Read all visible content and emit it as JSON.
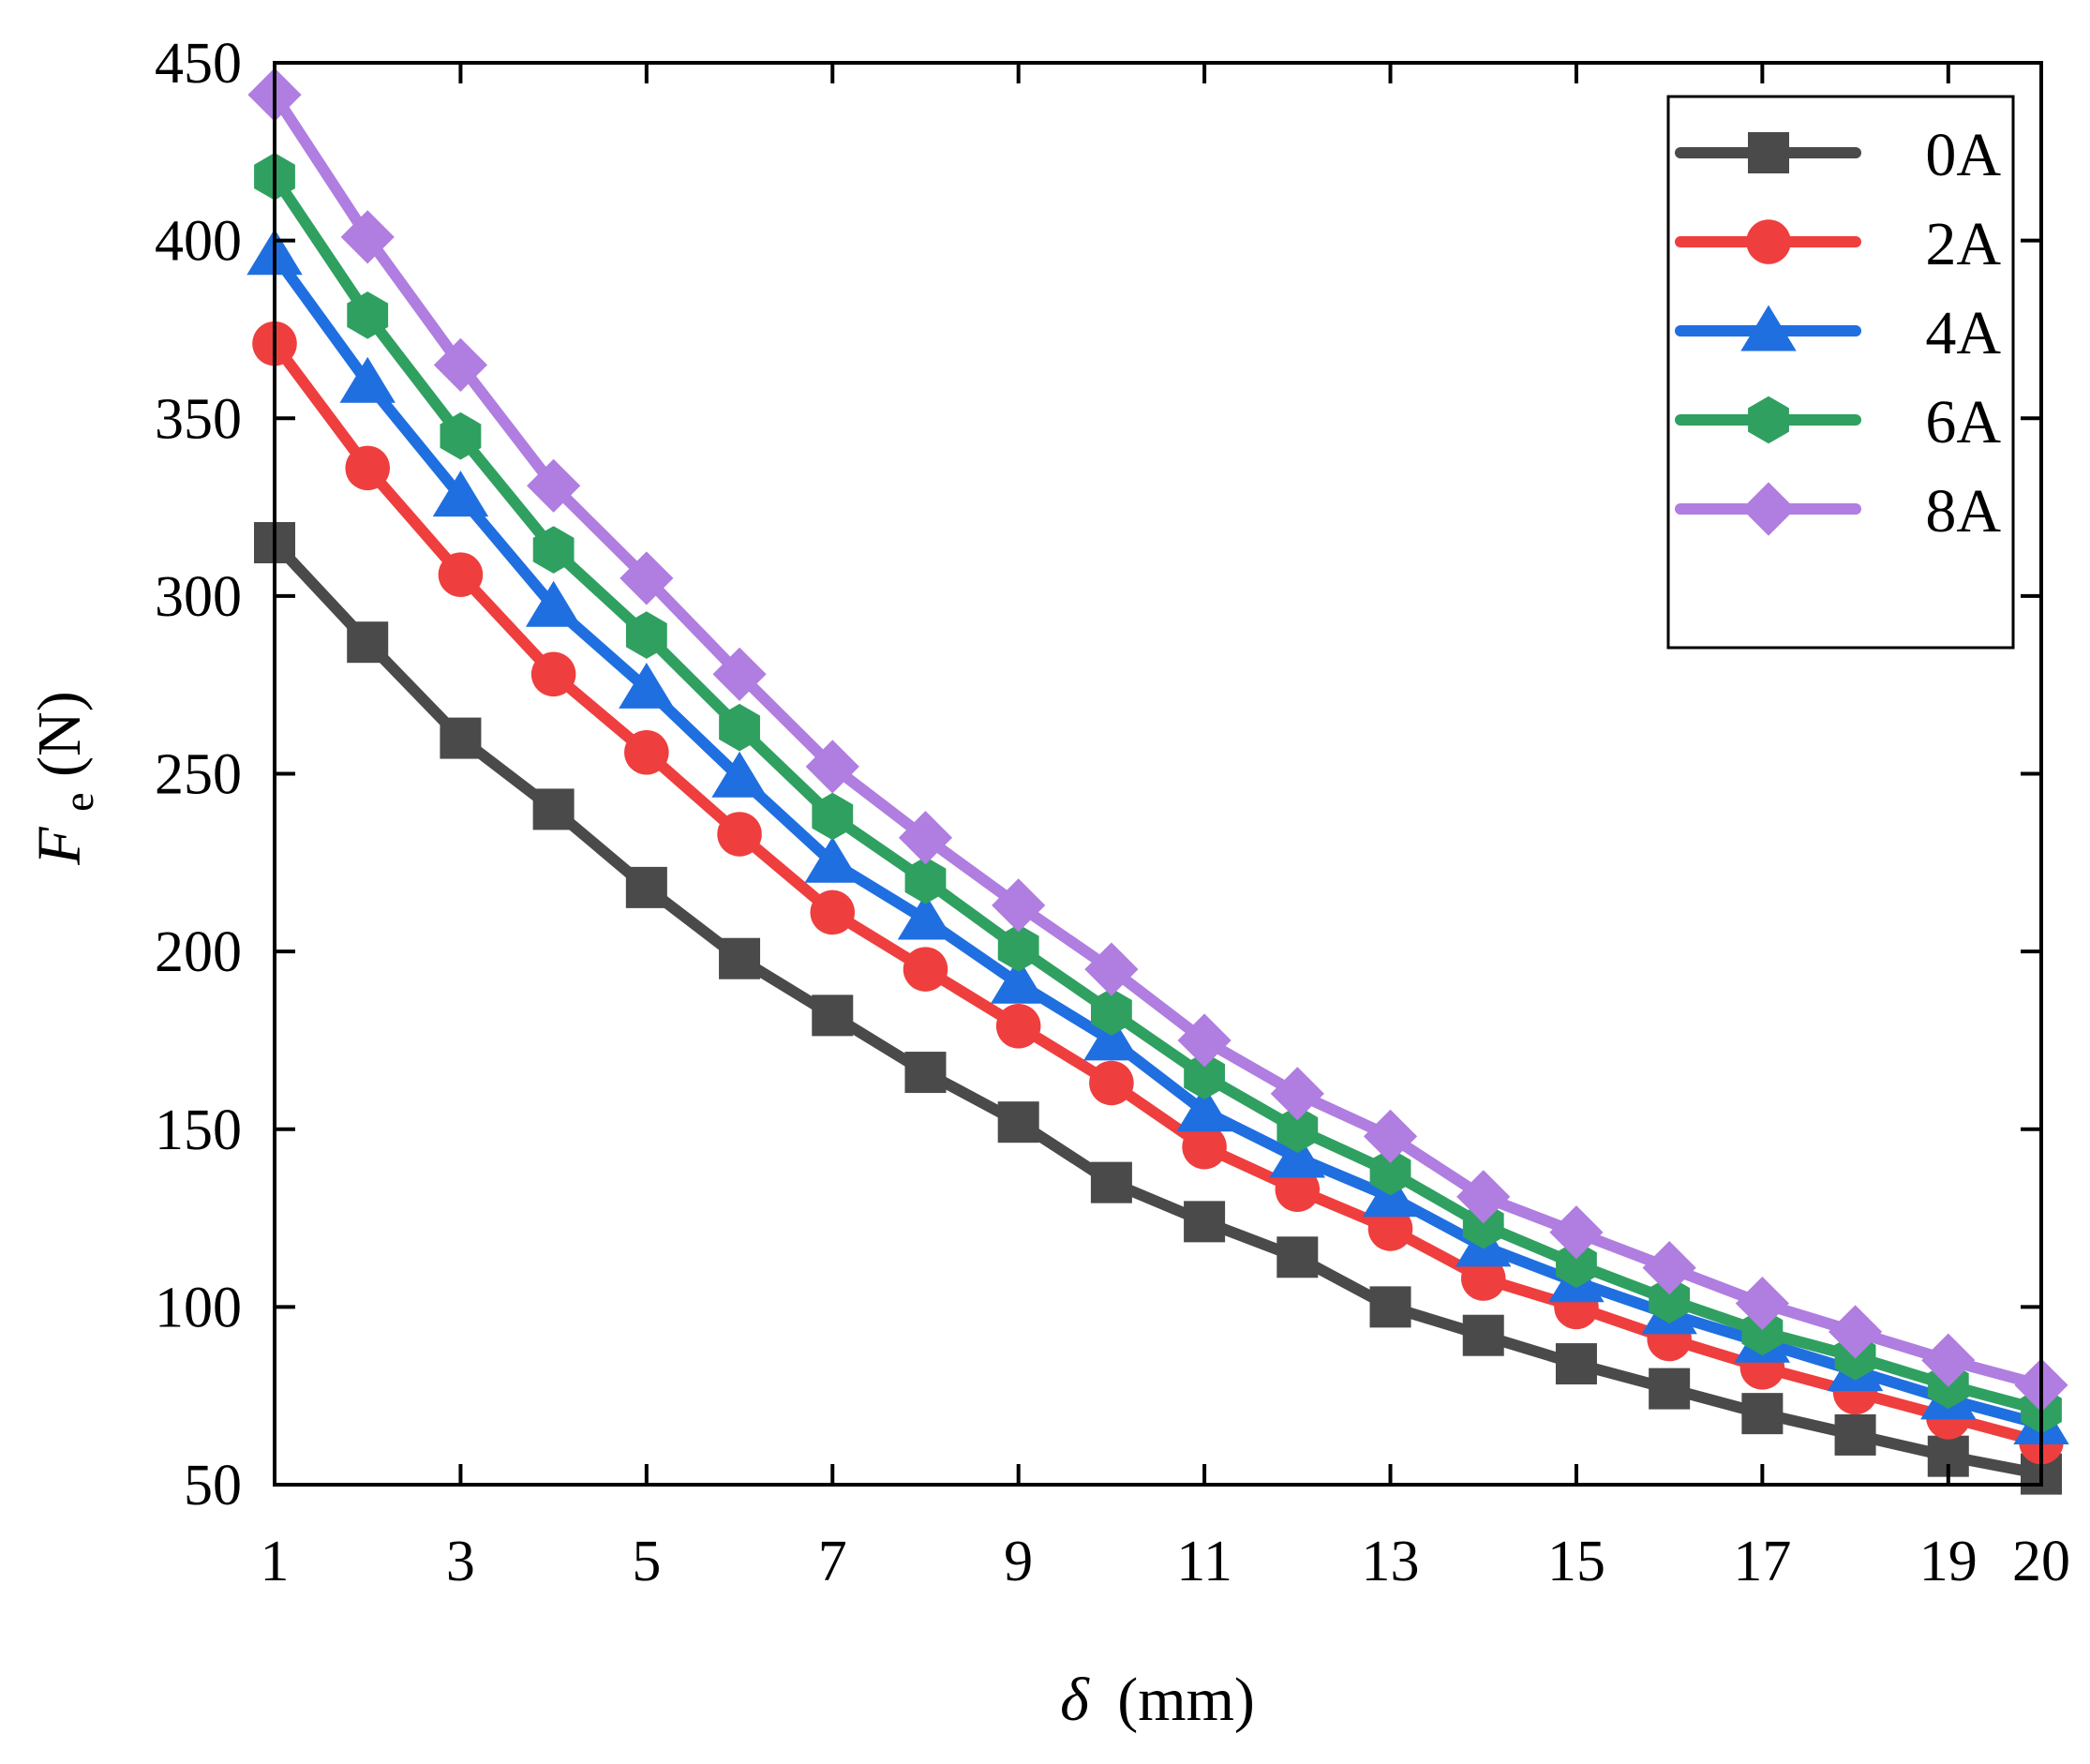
{
  "chart_data": {
    "type": "line",
    "xlabel_symbol": "δ",
    "xlabel_unit": "(mm)",
    "ylabel_symbol": "F",
    "ylabel_subscript": "e",
    "ylabel_unit": "(N)",
    "xlim": [
      1,
      20
    ],
    "ylim": [
      50,
      450
    ],
    "xticks": [
      1,
      3,
      5,
      7,
      9,
      11,
      13,
      15,
      17,
      19,
      20
    ],
    "yticks": [
      50,
      100,
      150,
      200,
      250,
      300,
      350,
      400,
      450
    ],
    "grid": false,
    "legend_position": "top-right",
    "x": [
      1,
      2,
      3,
      4,
      5,
      6,
      7,
      8,
      9,
      10,
      11,
      12,
      13,
      14,
      15,
      16,
      17,
      18,
      19,
      20
    ],
    "series": [
      {
        "name": "0A",
        "color": "#4a4a4a",
        "marker": "square",
        "values": [
          315,
          287,
          260,
          240,
          218,
          198,
          182,
          166,
          152,
          135,
          124,
          114,
          100,
          92,
          84,
          77,
          70,
          64,
          58,
          53
        ]
      },
      {
        "name": "2A",
        "color": "#ef3e3e",
        "marker": "circle",
        "values": [
          371,
          336,
          306,
          278,
          256,
          233,
          211,
          195,
          179,
          163,
          145,
          133,
          122,
          108,
          100,
          91,
          83,
          76,
          69,
          62
        ]
      },
      {
        "name": "4A",
        "color": "#1f6fe0",
        "marker": "triangle",
        "values": [
          396,
          360,
          328,
          297,
          274,
          249,
          225,
          209,
          191,
          175,
          155,
          142,
          131,
          117,
          107,
          98,
          90,
          82,
          74,
          67
        ]
      },
      {
        "name": "6A",
        "color": "#2fa060",
        "marker": "hexagon",
        "values": [
          418,
          379,
          345,
          313,
          289,
          263,
          238,
          220,
          201,
          183,
          165,
          150,
          138,
          123,
          112,
          102,
          93,
          86,
          78,
          71
        ]
      },
      {
        "name": "8A",
        "color": "#b07de0",
        "marker": "diamond",
        "values": [
          441,
          401,
          365,
          331,
          305,
          278,
          252,
          232,
          213,
          195,
          175,
          160,
          148,
          131,
          121,
          111,
          101,
          93,
          85,
          78
        ]
      }
    ]
  }
}
